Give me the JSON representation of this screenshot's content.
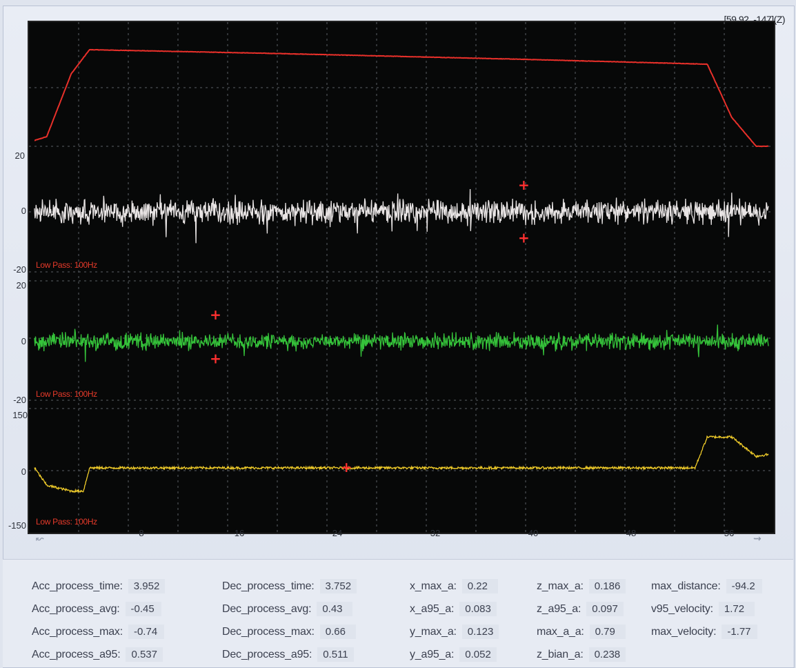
{
  "coord_readout": "[59.92, -147](Z)",
  "x_ticks": [
    "8",
    "16",
    "24",
    "32",
    "40",
    "48",
    "56"
  ],
  "channels": [
    {
      "name": "velocity",
      "color": "#e8302a",
      "y_labels": {
        "top": "",
        "mid": "",
        "bottom": "20"
      },
      "filter": ""
    },
    {
      "name": "x_acc",
      "color": "#e8e4e4",
      "y_labels": {
        "top": "20",
        "mid": "0",
        "bottom": "-20"
      },
      "filter": "Low Pass: 100Hz"
    },
    {
      "name": "y_acc",
      "color": "#35c23a",
      "y_labels": {
        "top": "20",
        "mid": "0",
        "bottom": "-20"
      },
      "filter": "Low Pass: 100Hz"
    },
    {
      "name": "z_acc",
      "color": "#f0cc2a",
      "y_labels": {
        "top": "150",
        "mid": "0",
        "bottom": "-150"
      },
      "filter": "Low Pass: 100Hz"
    }
  ],
  "chart_data": {
    "type": "line",
    "x_range": [
      0,
      60
    ],
    "series": [
      {
        "name": "",
        "ylim": [
          0,
          1
        ],
        "points": [
          [
            0,
            0.06
          ],
          [
            1,
            0.1
          ],
          [
            3,
            0.75
          ],
          [
            4.5,
            1.0
          ],
          [
            20,
            0.96
          ],
          [
            40,
            0.9
          ],
          [
            55,
            0.85
          ],
          [
            57,
            0.3
          ],
          [
            59,
            0.0
          ],
          [
            60,
            0.0
          ]
        ]
      },
      {
        "name": "",
        "ylim": [
          -20,
          20
        ],
        "noise_amp": 3.5,
        "markers": [
          [
            40,
            9
          ],
          [
            40,
            -9
          ]
        ]
      },
      {
        "name": "",
        "ylim": [
          -20,
          20
        ],
        "noise_amp": 2.5,
        "markers": [
          [
            14.8,
            9
          ],
          [
            14.8,
            -6
          ]
        ]
      },
      {
        "name": "",
        "ylim": [
          -150,
          150
        ],
        "points": [
          [
            0,
            0
          ],
          [
            1,
            -45
          ],
          [
            3,
            -60
          ],
          [
            4,
            -60
          ],
          [
            4.5,
            0
          ],
          [
            54,
            0
          ],
          [
            55,
            80
          ],
          [
            57,
            80
          ],
          [
            59,
            30
          ],
          [
            60,
            35
          ]
        ],
        "markers": [
          [
            25.5,
            0
          ]
        ]
      }
    ]
  },
  "stats": {
    "col1": [
      {
        "label": "Acc_process_time:",
        "value": "3.952"
      },
      {
        "label": "Acc_process_avg:",
        "value": "-0.45"
      },
      {
        "label": "Acc_process_max:",
        "value": "-0.74"
      },
      {
        "label": "Acc_process_a95:",
        "value": "0.537"
      }
    ],
    "col2": [
      {
        "label": "Dec_process_time:",
        "value": "3.752"
      },
      {
        "label": "Dec_process_avg:",
        "value": "0.43"
      },
      {
        "label": "Dec_process_max:",
        "value": "0.66"
      },
      {
        "label": "Dec_process_a95:",
        "value": "0.511"
      }
    ],
    "col3": [
      {
        "label": "x_max_a:",
        "value": "0.22"
      },
      {
        "label": "x_a95_a:",
        "value": "0.083"
      },
      {
        "label": "y_max_a:",
        "value": "0.123"
      },
      {
        "label": "y_a95_a:",
        "value": "0.052"
      }
    ],
    "col4": [
      {
        "label": "z_max_a:",
        "value": "0.186"
      },
      {
        "label": "z_a95_a:",
        "value": "0.097"
      },
      {
        "label": "max_a_a:",
        "value": "0.79"
      },
      {
        "label": "z_bian_a:",
        "value": "0.238"
      }
    ],
    "col5": [
      {
        "label": "max_distance:",
        "value": "-94.2"
      },
      {
        "label": "v95_velocity:",
        "value": "1.72"
      },
      {
        "label": "max_velocity:",
        "value": "-1.77"
      }
    ]
  },
  "colors": {
    "background": "#070808",
    "grid": "#5b5f66",
    "marker": "#ff3030"
  }
}
